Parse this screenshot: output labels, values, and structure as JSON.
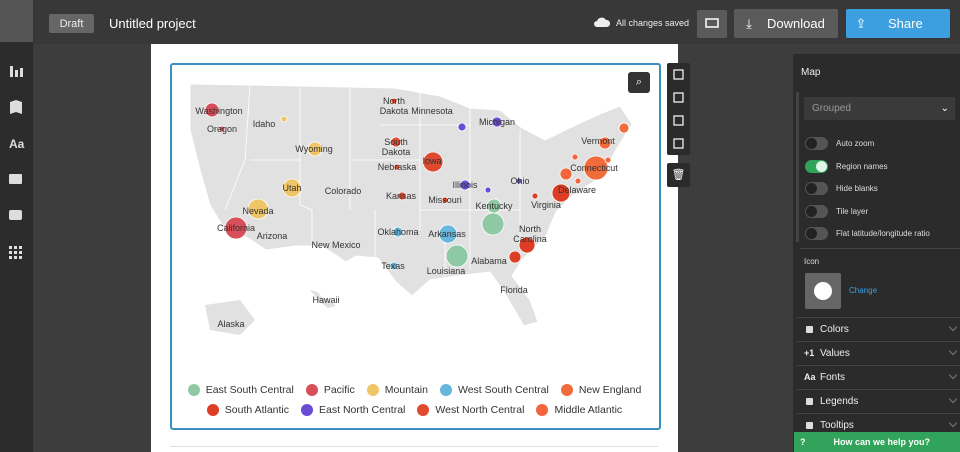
{
  "top_bar": {
    "status": "Draft",
    "project_name": "Untitled project",
    "save_status": "All changes saved",
    "download": "Download",
    "share": "Share"
  },
  "sidebar": {
    "fonts_icon": "Aa"
  },
  "map": {
    "region_labels": [
      "Washington",
      "Oregon",
      "Idaho",
      "Wyoming",
      "North Dakota",
      "Minnesota",
      "Michigan",
      "South Dakota",
      "Nebraska",
      "Iowa",
      "Utah",
      "Colorado",
      "Illinois",
      "Ohio",
      "Vermont",
      "Connecticut",
      "Delaware",
      "Nevada",
      "California",
      "Kansas",
      "Missouri",
      "Kentucky",
      "Virginia",
      "Arizona",
      "Oklahoma",
      "Arkansas",
      "North Carolina",
      "New Mexico",
      "Texas",
      "Louisiana",
      "Alabama",
      "Florida",
      "Hawaii",
      "Alaska"
    ],
    "legend": [
      {
        "name": "East South Central",
        "color": "#8fc9a3"
      },
      {
        "name": "Pacific",
        "color": "#d64f5a"
      },
      {
        "name": "Mountain",
        "color": "#f0c567"
      },
      {
        "name": "West South Central",
        "color": "#67b7dc"
      },
      {
        "name": "New England",
        "color": "#f26b3a"
      },
      {
        "name": "South Atlantic",
        "color": "#de3d25"
      },
      {
        "name": "East North Central",
        "color": "#6a4bd6"
      },
      {
        "name": "West North Central",
        "color": "#e04a2f"
      },
      {
        "name": "Middle Atlantic",
        "color": "#f2653e"
      }
    ]
  },
  "settings_panel": {
    "title": "Map",
    "grouping": "Grouped",
    "toggles": [
      {
        "label": "Auto zoom",
        "on": false
      },
      {
        "label": "Region names",
        "on": true
      },
      {
        "label": "Hide blanks",
        "on": false
      },
      {
        "label": "Tile layer",
        "on": false
      },
      {
        "label": "Flat latitude/longitude ratio",
        "on": false
      }
    ],
    "icon_label": "Icon",
    "change": "Change",
    "sections": [
      {
        "label": "Colors"
      },
      {
        "glyph": "+1",
        "label": "Values"
      },
      {
        "glyph": "Aa",
        "label": "Fonts"
      },
      {
        "label": "Legends"
      },
      {
        "label": "Tooltips"
      }
    ],
    "help": "How can we help you?"
  }
}
